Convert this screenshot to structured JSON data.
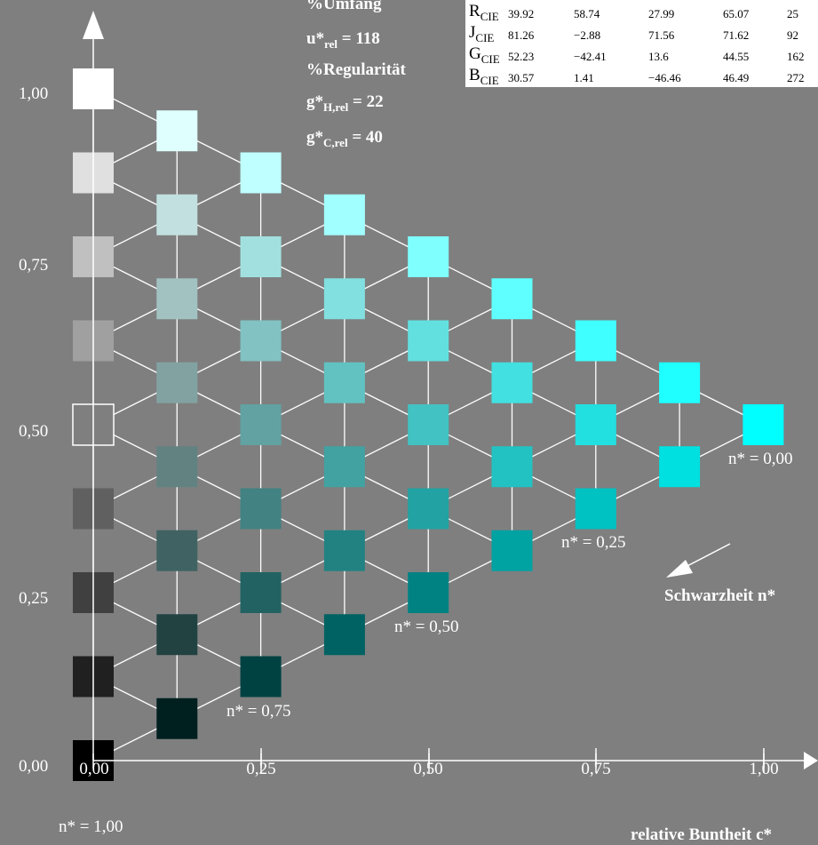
{
  "stats": {
    "umfang_label": "%Umfang",
    "u_rel_prefix": "u*",
    "u_rel_sub": "rel",
    "u_rel_value": "= 118",
    "regularitaet_label": "%Regularität",
    "gH_prefix": "g*",
    "gH_sub": "H,rel",
    "gH_value": "= 22",
    "gC_prefix": "g*",
    "gC_sub": "C,rel",
    "gC_value": "= 40"
  },
  "table": {
    "rows": [
      {
        "name_main": "R",
        "name_sub": "CIE",
        "c1": "39.92",
        "c2": "58.74",
        "c3": "27.99",
        "c4": "65.07",
        "c5": "25"
      },
      {
        "name_main": "J",
        "name_sub": "CIE",
        "c1": "81.26",
        "c2": "−2.88",
        "c3": "71.56",
        "c4": "71.62",
        "c5": "92"
      },
      {
        "name_main": "G",
        "name_sub": "CIE",
        "c1": "52.23",
        "c2": "−42.41",
        "c3": "13.6",
        "c4": "44.55",
        "c5": "162"
      },
      {
        "name_main": "B",
        "name_sub": "CIE",
        "c1": "30.57",
        "c2": "1.41",
        "c3": "−46.46",
        "c4": "46.49",
        "c5": "272"
      }
    ]
  },
  "axes": {
    "y_ticks": [
      "1,00",
      "0,75",
      "0,50",
      "0,25",
      "0,00"
    ],
    "x_ticks": [
      "0,00",
      "0,25",
      "0,50",
      "0,75",
      "1,00"
    ],
    "x_title": "relative Buntheit c*",
    "side_title": "Schwarzheit n*"
  },
  "n_labels": {
    "n000": "n* = 0,00",
    "n025": "n* = 0,25",
    "n050": "n* = 0,50",
    "n075": "n* = 0,75",
    "n100": "n* = 1,00"
  },
  "colors": {
    "background": "#7f7f7f",
    "hue_full": "#00ffff",
    "hue_dark": "#004545",
    "lines": "#ffffff"
  },
  "grid": {
    "steps": 8,
    "column_0_colors": [
      "#ffffff",
      "#e0e0e0",
      "#c0c0c0",
      "#a0a0a0",
      "#808080",
      "#606060",
      "#404040",
      "#202020",
      "#000000"
    ],
    "description_colors": {
      "col1": [
        "#dfffff",
        "#c2e0e0",
        "#a2c2c2",
        "#82a2a2",
        "#628282",
        "#406262",
        "#224242",
        "#002020"
      ],
      "col2": [
        "#bfffff",
        "#a2e0e0",
        "#82c2c2",
        "#62a2a2",
        "#428282",
        "#226262",
        "#004242"
      ],
      "col3": [
        "#a2ffff",
        "#82e0e0",
        "#62c2c2",
        "#42a2a2",
        "#228282",
        "#006262"
      ],
      "col4": [
        "#80ffff",
        "#62e0e0",
        "#42c2c2",
        "#22a2a2",
        "#008282"
      ],
      "col5": [
        "#5fffff",
        "#42e0e0",
        "#22c2c2",
        "#00a2a2"
      ],
      "col6": [
        "#40ffff",
        "#22e0e0",
        "#00c2c2"
      ],
      "col7": [
        "#1fffff",
        "#00e0e0"
      ],
      "col8": [
        "#00ffff"
      ]
    }
  }
}
